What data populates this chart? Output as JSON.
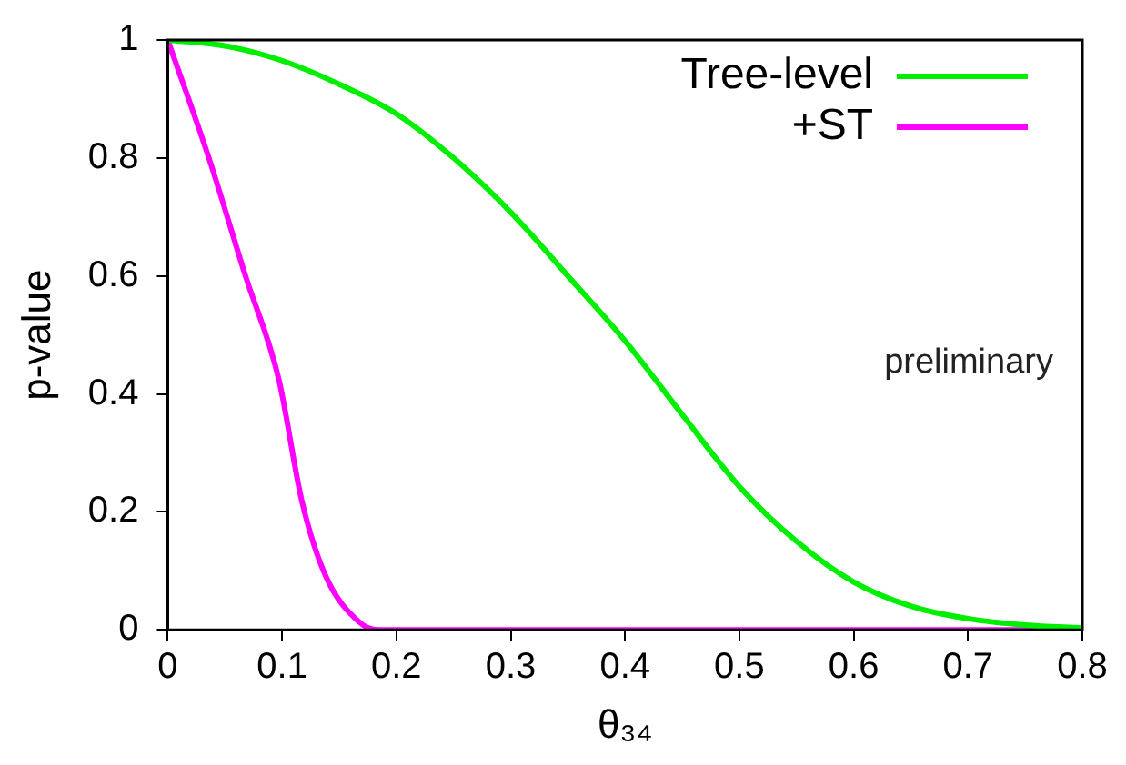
{
  "chart_data": {
    "type": "line",
    "xlabel": "θ₃₄",
    "ylabel": "p-value",
    "xlim": [
      0,
      0.8
    ],
    "ylim": [
      0,
      1
    ],
    "xticks": [
      0,
      0.1,
      0.2,
      0.3,
      0.4,
      0.5,
      0.6,
      0.7,
      0.8
    ],
    "yticks": [
      0,
      0.2,
      0.4,
      0.6,
      0.8,
      1
    ],
    "grid": false,
    "legend": "top right",
    "marker": "none",
    "line_style": "solid",
    "annotations": [
      "preliminary"
    ],
    "series": [
      {
        "name": "Tree-level",
        "color": "#00ee00",
        "x": [
          0,
          0.05,
          0.1,
          0.15,
          0.2,
          0.25,
          0.3,
          0.35,
          0.4,
          0.45,
          0.5,
          0.55,
          0.6,
          0.65,
          0.7,
          0.75,
          0.8
        ],
        "values": [
          1,
          0.99,
          0.965,
          0.925,
          0.875,
          0.8,
          0.708,
          0.6,
          0.49,
          0.365,
          0.243,
          0.15,
          0.081,
          0.04,
          0.019,
          0.008,
          0.003
        ]
      },
      {
        "name": "+ST",
        "color": "#ff00ff",
        "x": [
          0,
          0.036,
          0.068,
          0.097,
          0.1175,
          0.138,
          0.167,
          0.184,
          0.3,
          0.5,
          0.8
        ],
        "values": [
          1,
          0.8,
          0.6,
          0.426,
          0.217,
          0.092,
          0.014,
          0,
          0,
          0,
          0
        ]
      }
    ]
  }
}
